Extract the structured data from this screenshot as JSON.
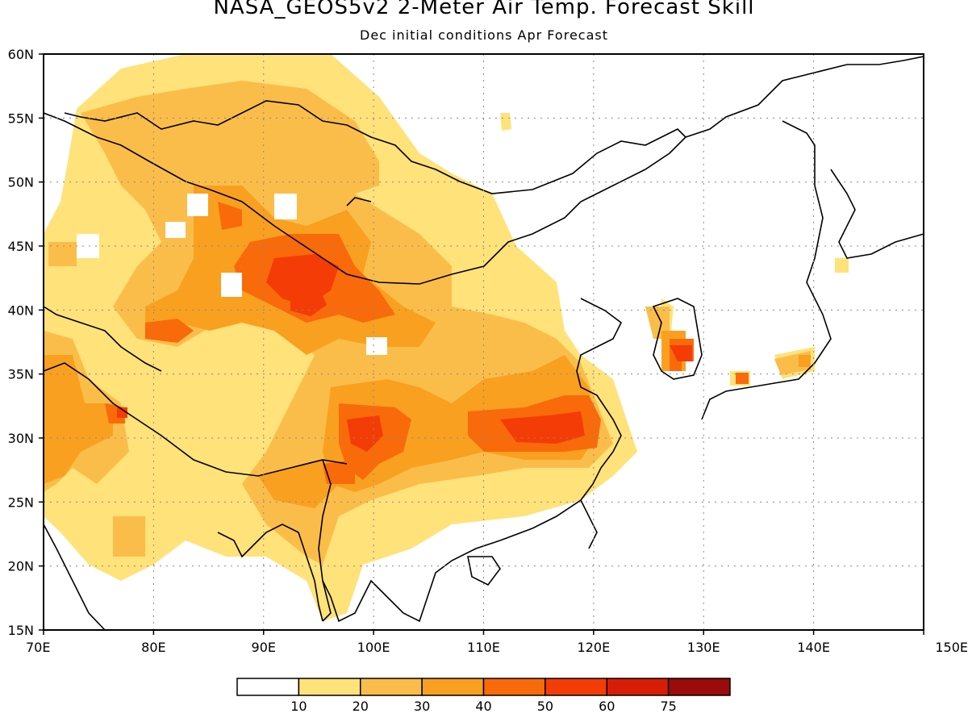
{
  "title": "NASA_GEOS5v2 2-Meter Air Temp. Forecast Skill",
  "subtitle": "Dec initial conditions  Apr Forecast",
  "map": {
    "lon_range": [
      70,
      150
    ],
    "lat_range": [
      15,
      60
    ],
    "lon_ticks": [
      {
        "value": 70,
        "label": "70E"
      },
      {
        "value": 80,
        "label": "80E"
      },
      {
        "value": 90,
        "label": "90E"
      },
      {
        "value": 100,
        "label": "100E"
      },
      {
        "value": 110,
        "label": "110E"
      },
      {
        "value": 120,
        "label": "120E"
      },
      {
        "value": 130,
        "label": "130E"
      },
      {
        "value": 140,
        "label": "140E"
      },
      {
        "value": 150,
        "label": "150E"
      }
    ],
    "lat_ticks": [
      {
        "value": 15,
        "label": "15N"
      },
      {
        "value": 20,
        "label": "20N"
      },
      {
        "value": 25,
        "label": "25N"
      },
      {
        "value": 30,
        "label": "30N"
      },
      {
        "value": 35,
        "label": "35N"
      },
      {
        "value": 40,
        "label": "40N"
      },
      {
        "value": 45,
        "label": "45N"
      },
      {
        "value": 50,
        "label": "50N"
      },
      {
        "value": 55,
        "label": "55N"
      },
      {
        "value": 60,
        "label": "60N"
      }
    ],
    "grid": "dotted"
  },
  "colorbar": {
    "colors": [
      "#ffffff",
      "#ffe27a",
      "#fbbd4a",
      "#f9a020",
      "#f96a0a",
      "#f43c06",
      "#d81d07",
      "#9b0b0b"
    ],
    "labels": [
      "10",
      "20",
      "30",
      "40",
      "50",
      "60",
      "75"
    ]
  }
}
